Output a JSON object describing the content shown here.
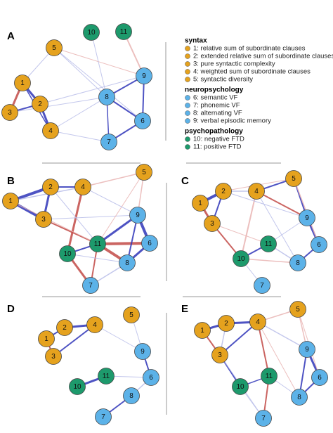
{
  "panels": [
    {
      "label": "A",
      "nodes": [
        "1",
        "2",
        "3",
        "4",
        "5",
        "6",
        "7",
        "8",
        "9",
        "10",
        "11"
      ]
    },
    {
      "label": "B",
      "nodes": [
        "1",
        "2",
        "3",
        "4",
        "5",
        "6",
        "7",
        "8",
        "9",
        "10",
        "11"
      ]
    },
    {
      "label": "C",
      "nodes": [
        "1",
        "2",
        "3",
        "4",
        "5",
        "6",
        "7",
        "8",
        "9",
        "10",
        "11"
      ]
    },
    {
      "label": "D",
      "nodes": [
        "1",
        "2",
        "3",
        "4",
        "5",
        "6",
        "7",
        "8",
        "9",
        "10",
        "11"
      ]
    },
    {
      "label": "E",
      "nodes": [
        "1",
        "2",
        "3",
        "4",
        "5",
        "6",
        "7",
        "8",
        "9",
        "10",
        "11"
      ]
    }
  ],
  "legend": {
    "groups": [
      {
        "title": "syntax",
        "items": [
          "1: relative sum of subordinate clauses",
          "2: extended relative sum of subordinate clauses",
          "3: pure syntactic complexity",
          "4: weighted sum of subordinate clauses",
          "5: syntactic diversity"
        ]
      },
      {
        "title": "neuropsychology",
        "items": [
          "6: semantic VF",
          "7: phonemic VF",
          "8: alternating VF",
          "9: verbal episodic memory"
        ]
      },
      {
        "title": "psychopathology",
        "items": [
          "10: negative FTD",
          "11: positive FTD"
        ]
      }
    ]
  }
}
